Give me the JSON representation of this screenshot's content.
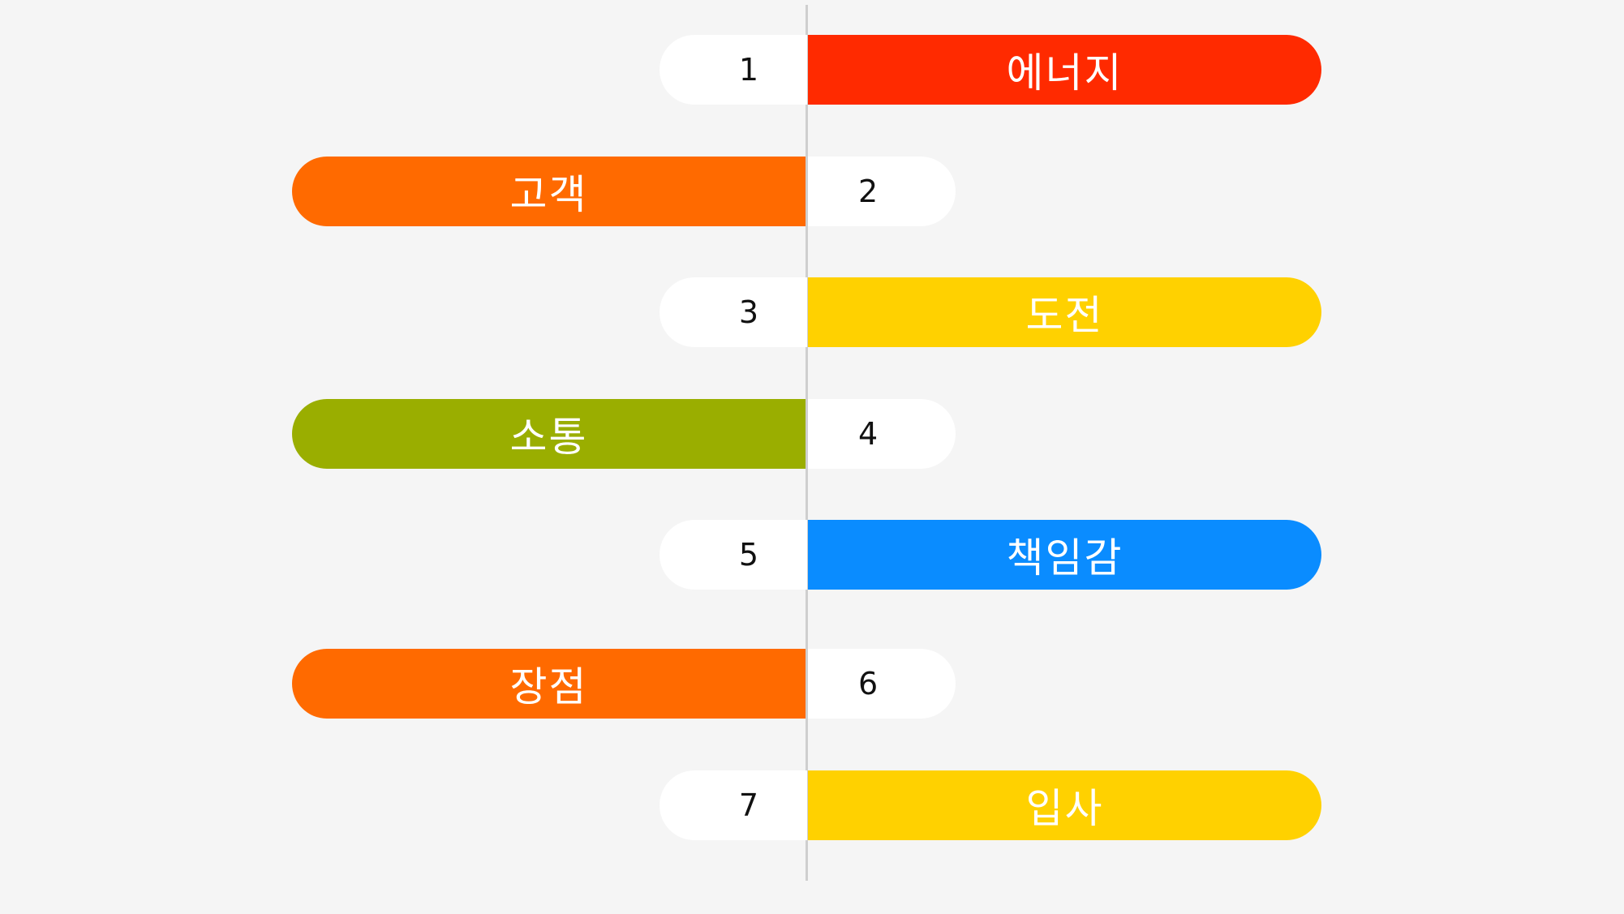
{
  "colors": {
    "background": "#f5f5f5",
    "axis": "#cfcfcf",
    "badge": "#ffffff",
    "red": "#ff2a00",
    "orange": "#ff6a00",
    "yellow": "#ffd100",
    "olive": "#9aae00",
    "blue": "#0a8cff"
  },
  "items": [
    {
      "number": "1",
      "label": "에너지",
      "color": "#ff2a00",
      "side": "right"
    },
    {
      "number": "2",
      "label": "고객",
      "color": "#ff6a00",
      "side": "left"
    },
    {
      "number": "3",
      "label": "도전",
      "color": "#ffd100",
      "side": "right"
    },
    {
      "number": "4",
      "label": "소통",
      "color": "#9aae00",
      "side": "left"
    },
    {
      "number": "5",
      "label": "책임감",
      "color": "#0a8cff",
      "side": "right"
    },
    {
      "number": "6",
      "label": "장점",
      "color": "#ff6a00",
      "side": "left"
    },
    {
      "number": "7",
      "label": "입사",
      "color": "#ffd100",
      "side": "right"
    }
  ]
}
